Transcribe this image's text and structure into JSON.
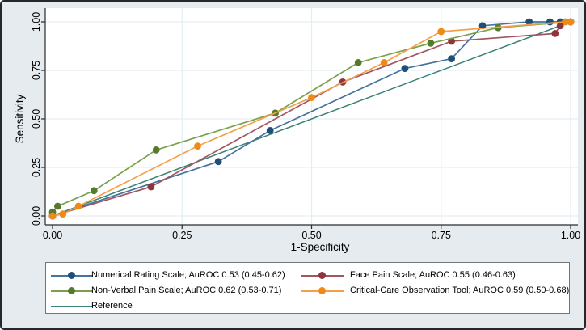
{
  "chart_data": {
    "type": "line",
    "subtype": "roc-curves",
    "title": "",
    "xlabel": "1-Specificity",
    "ylabel": "Sensitivity",
    "xlim": [
      0,
      1
    ],
    "ylim": [
      0,
      1
    ],
    "tick_values": [
      0,
      0.25,
      0.5,
      0.75,
      1
    ],
    "tick_labels": [
      "0.00",
      "0.25",
      "0.50",
      "0.75",
      "1.00"
    ],
    "grid": true,
    "legend_position": "bottom",
    "legend_columns": 2,
    "series": [
      {
        "label": "Numerical Rating Scale; AuROC 0.53 (0.45-0.62)",
        "line_color": "#44739f",
        "marker_color": "#1e4e79",
        "has_markers": true,
        "points": [
          [
            0,
            0
          ],
          [
            0.32,
            0.28
          ],
          [
            0.42,
            0.44
          ],
          [
            0.68,
            0.76
          ],
          [
            0.77,
            0.81
          ],
          [
            0.83,
            0.98
          ],
          [
            0.92,
            1
          ],
          [
            0.96,
            1
          ],
          [
            0.98,
            1
          ],
          [
            1,
            1
          ]
        ]
      },
      {
        "label": "Face Pain Scale; AuROC 0.55 (0.46-0.63)",
        "line_color": "#a05760",
        "marker_color": "#8e353c",
        "has_markers": true,
        "points": [
          [
            0,
            0
          ],
          [
            0.19,
            0.15
          ],
          [
            0.56,
            0.69
          ],
          [
            0.77,
            0.9
          ],
          [
            0.97,
            0.94
          ],
          [
            0.98,
            0.98
          ],
          [
            1,
            1
          ]
        ]
      },
      {
        "label": "Non-Verbal Pain Scale; AuROC 0.62 (0.53-0.71)",
        "line_color": "#79a04c",
        "marker_color": "#567a2d",
        "has_markers": true,
        "points": [
          [
            0,
            0.02
          ],
          [
            0.01,
            0.05
          ],
          [
            0.08,
            0.13
          ],
          [
            0.2,
            0.34
          ],
          [
            0.43,
            0.53
          ],
          [
            0.59,
            0.79
          ],
          [
            0.73,
            0.89
          ],
          [
            0.86,
            0.97
          ],
          [
            1,
            1
          ]
        ]
      },
      {
        "label": "Critical-Care Observation Tool; AuROC 0.59 (0.50-0.68)",
        "line_color": "#f3a04a",
        "marker_color": "#ee8a18",
        "has_markers": true,
        "points": [
          [
            0,
            0
          ],
          [
            0.02,
            0.01
          ],
          [
            0.05,
            0.05
          ],
          [
            0.28,
            0.36
          ],
          [
            0.5,
            0.61
          ],
          [
            0.64,
            0.79
          ],
          [
            0.75,
            0.95
          ],
          [
            0.99,
            1
          ],
          [
            1,
            1
          ]
        ]
      },
      {
        "label": "Reference",
        "line_color": "#3a8177",
        "marker_color": "#3a8177",
        "has_markers": false,
        "points": [
          [
            0,
            0
          ],
          [
            1,
            1
          ]
        ]
      }
    ]
  },
  "colors": {
    "figure_bg": "#e5ebee",
    "plot_bg": "#ffffff",
    "grid": "#e3edf3",
    "axis": "#2b2b2b",
    "text": "#000000",
    "figure_border": "#23282b",
    "legend_border": "#6f7578",
    "legend_bg": "#ffffff"
  }
}
